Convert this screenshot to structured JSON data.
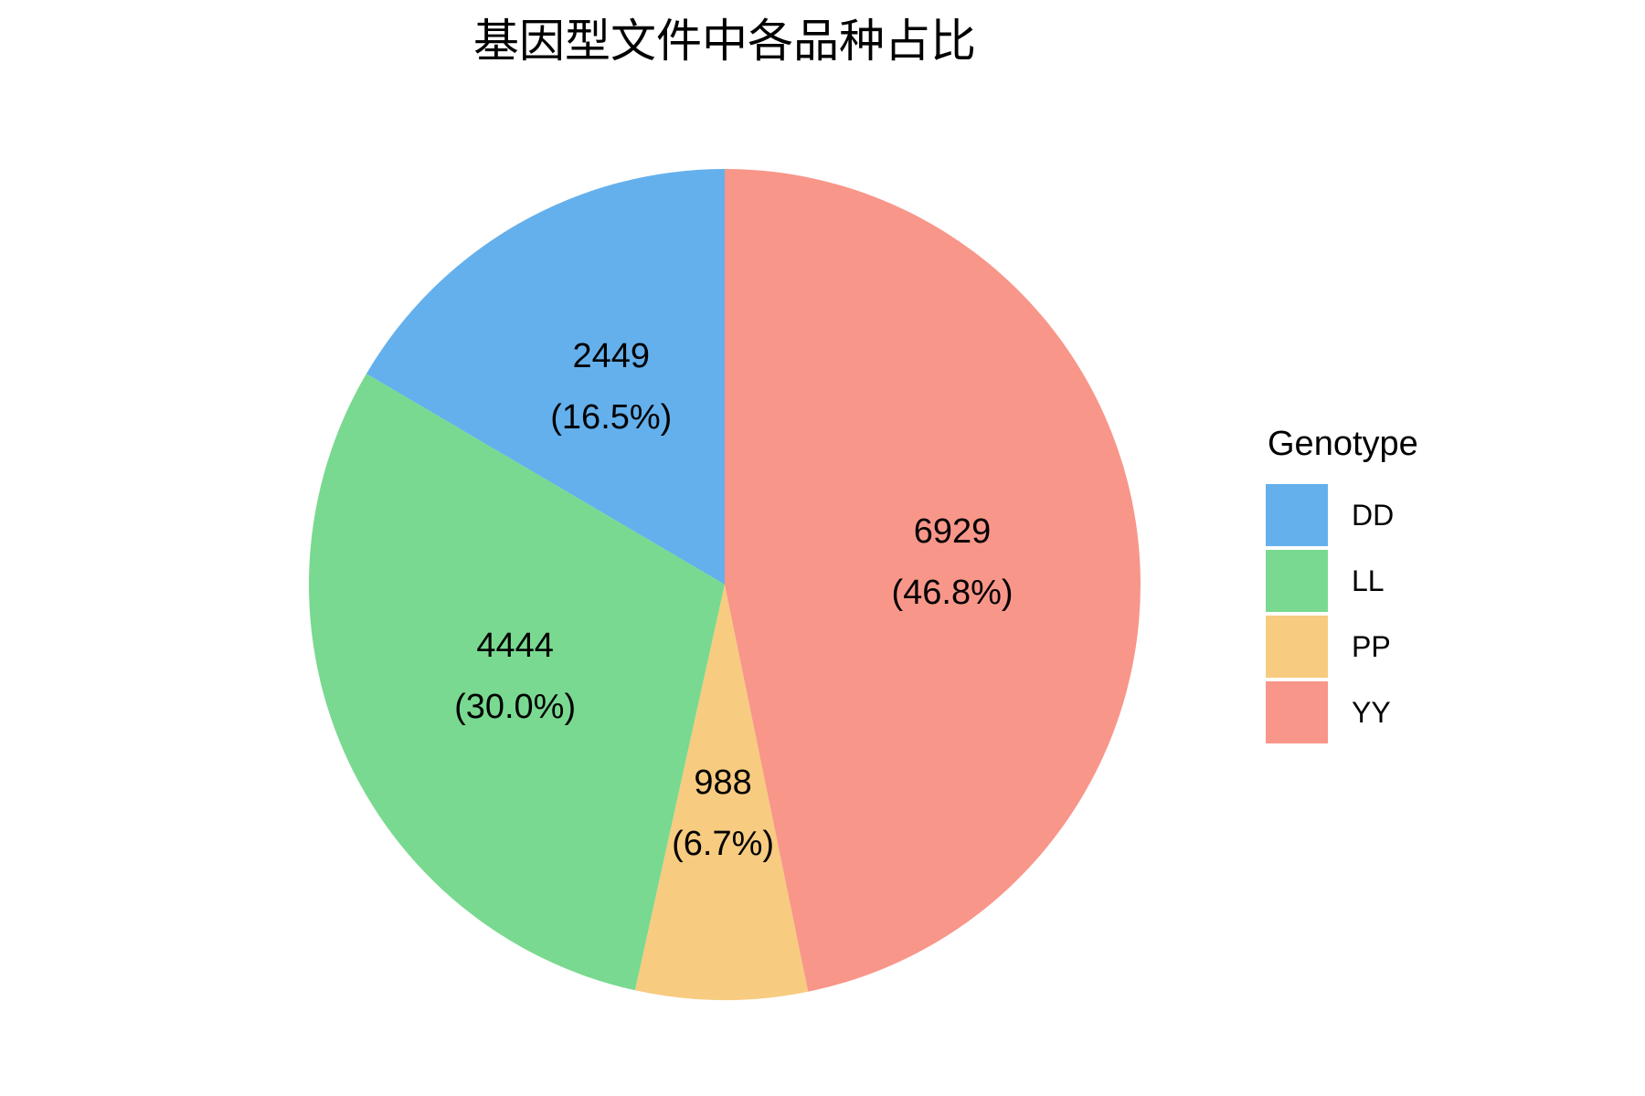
{
  "chart_data": {
    "type": "pie",
    "title": "基因型文件中各品种占比",
    "legend_title": "Genotype",
    "legend_position": "right",
    "categories": [
      "DD",
      "LL",
      "PP",
      "YY"
    ],
    "values": [
      2449,
      4444,
      988,
      6929
    ],
    "value_labels": [
      "2449",
      "4444",
      "988",
      "6929"
    ],
    "percent_labels": [
      "(16.5%)",
      "(30.0%)",
      "(6.7%)",
      "(46.8%)"
    ],
    "colors": [
      "#64b0ec",
      "#79d990",
      "#f7cb80",
      "#f8968a"
    ],
    "direction": "counterclockwise",
    "start_category": "DD"
  }
}
